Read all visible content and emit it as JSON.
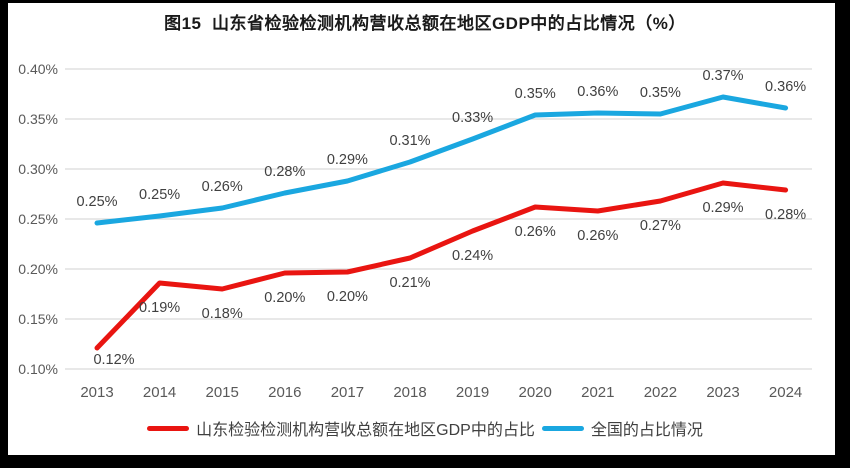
{
  "chart_data": {
    "type": "line",
    "title": "图15  山东省检验检测机构营收总额在地区GDP中的占比情况（%）",
    "categories": [
      "2013",
      "2014",
      "2015",
      "2016",
      "2017",
      "2018",
      "2019",
      "2020",
      "2021",
      "2022",
      "2023",
      "2024"
    ],
    "y_ticks": [
      "0.40%",
      "0.35%",
      "0.30%",
      "0.25%",
      "0.20%",
      "0.15%",
      "0.10%"
    ],
    "ylim_percent": [
      0.1,
      0.4
    ],
    "y_tick_step": 0.05,
    "grid": true,
    "legend_position": "bottom",
    "colors": {
      "shandong_line": "#e91511",
      "national_line": "#1aa7e0",
      "gridline": "#d9d9d9",
      "axis_text": "#595959",
      "data_label_text": "#404040",
      "title_text": "#1a1a1a",
      "frame": "#000000",
      "paper": "#ffffff"
    },
    "series": [
      {
        "id": "shandong",
        "name": "山东检验检测机构营收总额在地区GDP中的占比",
        "color": "#e91511",
        "label_position": "below",
        "values": [
          0.12,
          0.19,
          0.18,
          0.2,
          0.2,
          0.21,
          0.24,
          0.26,
          0.26,
          0.27,
          0.29,
          0.28
        ],
        "labels": [
          "0.12%",
          "0.19%",
          "0.18%",
          "0.20%",
          "0.20%",
          "0.21%",
          "0.24%",
          "0.26%",
          "0.26%",
          "0.27%",
          "0.29%",
          "0.28%"
        ],
        "plot_values": [
          0.121,
          0.186,
          0.18,
          0.196,
          0.197,
          0.211,
          0.238,
          0.262,
          0.258,
          0.268,
          0.286,
          0.279
        ]
      },
      {
        "id": "national",
        "name": "全国的占比情况",
        "color": "#1aa7e0",
        "label_position": "above",
        "values": [
          0.25,
          0.25,
          0.26,
          0.28,
          0.29,
          0.31,
          0.33,
          0.35,
          0.36,
          0.35,
          0.37,
          0.36
        ],
        "labels": [
          "0.25%",
          "0.25%",
          "0.26%",
          "0.28%",
          "0.29%",
          "0.31%",
          "0.33%",
          "0.35%",
          "0.36%",
          "0.35%",
          "0.37%",
          "0.36%"
        ],
        "plot_values": [
          0.246,
          0.253,
          0.261,
          0.276,
          0.288,
          0.307,
          0.33,
          0.354,
          0.356,
          0.355,
          0.372,
          0.361
        ]
      }
    ]
  }
}
